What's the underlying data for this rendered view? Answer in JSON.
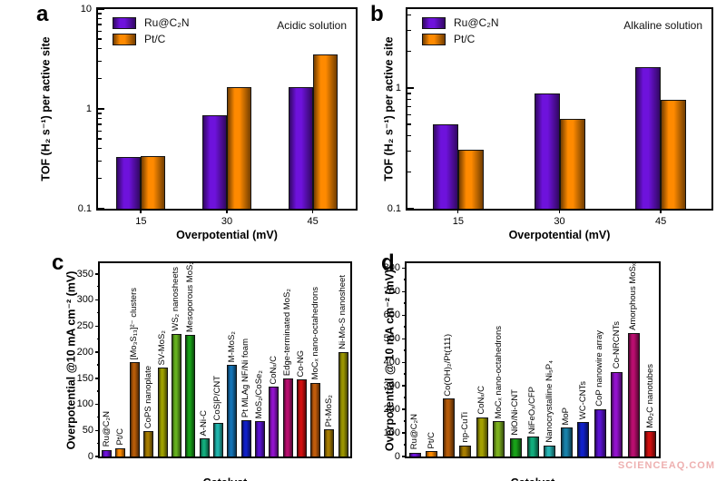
{
  "page": {
    "background": "#ffffff",
    "watermark": "SCIENCEAQ.COM"
  },
  "chart_data": [
    {
      "panel": "a",
      "type": "bar",
      "layout_kind": "grouped",
      "annotation": "Acidic solution",
      "xlabel": "Overpotential (mV)",
      "ylabel": "TOF (H₂ s⁻¹) per active site",
      "yscale": "log",
      "ylim": [
        0.1,
        10
      ],
      "yticks": [
        {
          "v": 0.1,
          "label": "0.1"
        },
        {
          "v": 1,
          "label": "1"
        },
        {
          "v": 10,
          "label": "10"
        }
      ],
      "categories": [
        "15",
        "30",
        "45"
      ],
      "series": [
        {
          "name": "Ru@C₂N",
          "color": "#6E12DC",
          "values": [
            0.33,
            0.87,
            1.65
          ]
        },
        {
          "name": "Pt/C",
          "color": "#FF8A00",
          "values": [
            0.34,
            1.65,
            3.5
          ]
        }
      ],
      "legend_position": "top-left",
      "grid": false
    },
    {
      "panel": "b",
      "type": "bar",
      "layout_kind": "grouped",
      "annotation": "Alkaline solution",
      "xlabel": "Overpotential (mV)",
      "ylabel": "TOF (H₂ s⁻¹) per active site",
      "yscale": "log",
      "ylim": [
        0.1,
        4.5
      ],
      "yticks": [
        {
          "v": 0.1,
          "label": "0.1"
        },
        {
          "v": 1,
          "label": "1"
        }
      ],
      "categories": [
        "15",
        "30",
        "45"
      ],
      "series": [
        {
          "name": "Ru@C₂N",
          "color": "#6E12DC",
          "values": [
            0.5,
            0.9,
            1.5
          ]
        },
        {
          "name": "Pt/C",
          "color": "#FF8A00",
          "values": [
            0.31,
            0.55,
            0.8
          ]
        }
      ],
      "legend_position": "top-left",
      "grid": false
    },
    {
      "panel": "c",
      "type": "bar",
      "layout_kind": "categorical",
      "xlabel": "Catalyst",
      "ylabel": "Overpotential @10 mA cm⁻² (mV)",
      "yscale": "linear",
      "ylim": [
        0,
        370
      ],
      "yticks": [
        {
          "v": 0,
          "label": "0"
        },
        {
          "v": 50,
          "label": "50"
        },
        {
          "v": 100,
          "label": "100"
        },
        {
          "v": 150,
          "label": "150"
        },
        {
          "v": 200,
          "label": "200"
        },
        {
          "v": 250,
          "label": "250"
        },
        {
          "v": 300,
          "label": "300"
        },
        {
          "v": 350,
          "label": "350"
        }
      ],
      "ytick_minor_step": 25,
      "bars": [
        {
          "label": "Ru@C₂N",
          "value": 13,
          "color": "#6E12DC"
        },
        {
          "label": "Pt/C",
          "value": 16,
          "color": "#FF8A00"
        },
        {
          "label": "[Mo₃S₁₃]²⁻ clusters",
          "value": 180,
          "color": "#B45A08"
        },
        {
          "label": "CoPS nanoplate",
          "value": 48,
          "color": "#A67C00"
        },
        {
          "label": "SV-MoS₂",
          "value": 170,
          "color": "#9EA000"
        },
        {
          "label": "WS₂ nanosheets",
          "value": 235,
          "color": "#64B01E"
        },
        {
          "label": "Mesoporous MoS₂",
          "value": 233,
          "color": "#18A018"
        },
        {
          "label": "A-Ni-C",
          "value": 34,
          "color": "#12AC7C"
        },
        {
          "label": "CoS|P/CNT",
          "value": 64,
          "color": "#20B4AC"
        },
        {
          "label": "M-MoS₂",
          "value": 175,
          "color": "#1472B4"
        },
        {
          "label": "Pt MLAg NF/Ni foam",
          "value": 69,
          "color": "#1020C8"
        },
        {
          "label": "MoS₂/CoSe₂",
          "value": 67,
          "color": "#5A12D0"
        },
        {
          "label": "CoNₓ/C",
          "value": 133,
          "color": "#9212CC"
        },
        {
          "label": "Edge-terminated MoS₂",
          "value": 149,
          "color": "#B80E6E"
        },
        {
          "label": "Co-NG",
          "value": 147,
          "color": "#D01010"
        },
        {
          "label": "MoCₓ nano-octahedrons",
          "value": 141,
          "color": "#C05C0C"
        },
        {
          "label": "Pt-MoS₂",
          "value": 52,
          "color": "#A67C00"
        },
        {
          "label": "Ni-Mo-S nanosheet",
          "value": 200,
          "color": "#9A9400"
        }
      ],
      "grid": false
    },
    {
      "panel": "d",
      "type": "bar",
      "layout_kind": "categorical",
      "xlabel": "Catalyst",
      "ylabel": "Overpotential @ 10 mA cm⁻² (mV)",
      "yscale": "linear",
      "ylim": [
        0,
        820
      ],
      "yticks": [
        {
          "v": 0,
          "label": "0"
        },
        {
          "v": 100,
          "label": "100"
        },
        {
          "v": 200,
          "label": "200"
        },
        {
          "v": 300,
          "label": "300"
        },
        {
          "v": 400,
          "label": "400"
        },
        {
          "v": 500,
          "label": "500"
        },
        {
          "v": 600,
          "label": "600"
        },
        {
          "v": 700,
          "label": "700"
        },
        {
          "v": 800,
          "label": "800"
        }
      ],
      "ytick_minor_step": 50,
      "bars": [
        {
          "label": "Ru@C₂N",
          "value": 17,
          "color": "#6E12DC"
        },
        {
          "label": "Pt/C",
          "value": 22,
          "color": "#FF8A00"
        },
        {
          "label": "Co(OH)₂/Pt(111)",
          "value": 245,
          "color": "#B45A08"
        },
        {
          "label": "np-CuTi",
          "value": 47,
          "color": "#A67C00"
        },
        {
          "label": "CoNₓ/C",
          "value": 167,
          "color": "#A4A000"
        },
        {
          "label": "MoCₓ nano-octahedrons",
          "value": 149,
          "color": "#7CB01E"
        },
        {
          "label": "NiO/Ni-CNT",
          "value": 78,
          "color": "#18A018"
        },
        {
          "label": "NiFeOₓ/CFP",
          "value": 85,
          "color": "#12AC7C"
        },
        {
          "label": "Nanocrystalline Ni₅P₄",
          "value": 47,
          "color": "#28B4B4"
        },
        {
          "label": "MoP",
          "value": 123,
          "color": "#1880A8"
        },
        {
          "label": "WC-CNTs",
          "value": 145,
          "color": "#1020C8"
        },
        {
          "label": "CoP nanowire array",
          "value": 200,
          "color": "#5A12D0"
        },
        {
          "label": "Co-NRCNTs",
          "value": 360,
          "color": "#9212CC"
        },
        {
          "label": "Amorphous MoSₓ",
          "value": 525,
          "color": "#B80E6E"
        },
        {
          "label": "Mo₂C nanotubes",
          "value": 107,
          "color": "#D01010"
        }
      ],
      "grid": false
    }
  ]
}
